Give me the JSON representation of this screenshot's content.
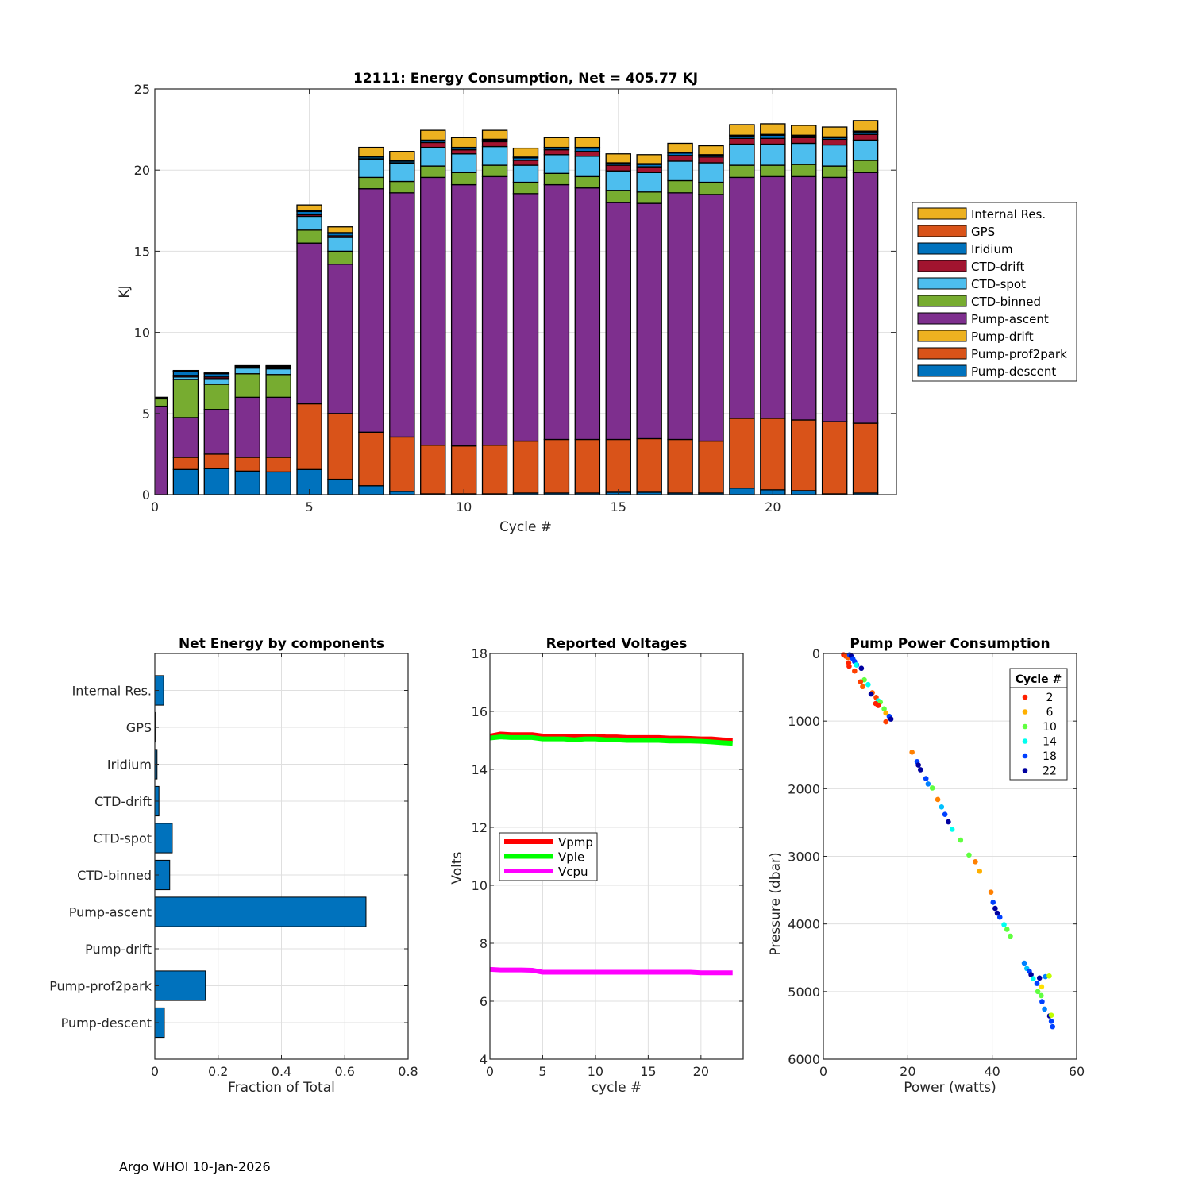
{
  "footer": "Argo WHOI 10-Jan-2026",
  "chart_data": [
    {
      "type": "bar",
      "stacked": true,
      "title": "12111: Energy Consumption,  Net = 405.77 KJ",
      "xlabel": "Cycle #",
      "ylabel": "KJ",
      "xlim": [
        0,
        24
      ],
      "ylim": [
        0,
        25
      ],
      "xticks": [
        0,
        5,
        10,
        15,
        20
      ],
      "yticks": [
        0,
        5,
        10,
        15,
        20,
        25
      ],
      "grid": true,
      "legend_position": "outside-right",
      "legend_order": [
        "Internal Res.",
        "GPS",
        "Iridium",
        "CTD-drift",
        "CTD-spot",
        "CTD-binned",
        "Pump-ascent",
        "Pump-drift",
        "Pump-prof2park",
        "Pump-descent"
      ],
      "x": [
        0,
        1,
        2,
        3,
        4,
        5,
        6,
        7,
        8,
        9,
        10,
        11,
        12,
        13,
        14,
        15,
        16,
        17,
        18,
        19,
        20,
        21,
        22,
        23
      ],
      "series": [
        {
          "name": "Pump-descent",
          "color": "#0072BD",
          "values": [
            0,
            1.55,
            1.6,
            1.45,
            1.4,
            1.55,
            0.95,
            0.55,
            0.2,
            0.05,
            0.05,
            0.05,
            0.1,
            0.1,
            0.1,
            0.15,
            0.15,
            0.1,
            0.1,
            0.4,
            0.3,
            0.25,
            0.05,
            0.1
          ]
        },
        {
          "name": "Pump-prof2park",
          "color": "#D95319",
          "values": [
            0,
            0.75,
            0.9,
            0.85,
            0.9,
            4.05,
            4.05,
            3.3,
            3.35,
            3.0,
            2.95,
            3.0,
            3.2,
            3.3,
            3.3,
            3.25,
            3.3,
            3.3,
            3.2,
            4.3,
            4.4,
            4.35,
            4.45,
            4.3
          ]
        },
        {
          "name": "Pump-drift",
          "color": "#EDB120",
          "values": [
            0,
            0,
            0,
            0,
            0,
            0,
            0,
            0,
            0,
            0,
            0,
            0,
            0,
            0,
            0,
            0,
            0,
            0,
            0,
            0,
            0,
            0,
            0,
            0
          ]
        },
        {
          "name": "Pump-ascent",
          "color": "#7E2F8E",
          "values": [
            5.45,
            2.45,
            2.75,
            3.7,
            3.7,
            9.9,
            9.2,
            15.0,
            15.05,
            16.5,
            16.1,
            16.55,
            15.25,
            15.7,
            15.5,
            14.6,
            14.5,
            15.2,
            15.2,
            14.85,
            14.9,
            15.0,
            15.05,
            15.45
          ]
        },
        {
          "name": "CTD-binned",
          "color": "#77AC30",
          "values": [
            0.45,
            2.35,
            1.55,
            1.45,
            1.4,
            0.8,
            0.8,
            0.7,
            0.7,
            0.7,
            0.75,
            0.7,
            0.7,
            0.7,
            0.7,
            0.75,
            0.7,
            0.75,
            0.75,
            0.75,
            0.7,
            0.75,
            0.7,
            0.75
          ]
        },
        {
          "name": "CTD-spot",
          "color": "#4DBEEE",
          "values": [
            0,
            0.15,
            0.35,
            0.35,
            0.35,
            0.85,
            0.85,
            1.1,
            1.1,
            1.15,
            1.15,
            1.15,
            1.05,
            1.15,
            1.25,
            1.2,
            1.2,
            1.2,
            1.2,
            1.3,
            1.3,
            1.3,
            1.3,
            1.25
          ]
        },
        {
          "name": "CTD-drift",
          "color": "#A2142F",
          "values": [
            0,
            0.1,
            0.1,
            0.05,
            0.1,
            0.1,
            0.1,
            0.05,
            0.05,
            0.3,
            0.25,
            0.3,
            0.3,
            0.3,
            0.3,
            0.35,
            0.35,
            0.35,
            0.35,
            0.35,
            0.35,
            0.35,
            0.35,
            0.35
          ]
        },
        {
          "name": "Iridium",
          "color": "#0072BD",
          "values": [
            0.05,
            0.25,
            0.2,
            0.05,
            0.05,
            0.2,
            0.15,
            0.1,
            0.1,
            0.1,
            0.1,
            0.1,
            0.15,
            0.1,
            0.2,
            0.1,
            0.15,
            0.15,
            0.1,
            0.15,
            0.2,
            0.1,
            0.1,
            0.15
          ]
        },
        {
          "name": "GPS",
          "color": "#D95319",
          "values": [
            0,
            0.02,
            0.02,
            0.02,
            0.02,
            0.05,
            0.05,
            0.05,
            0.05,
            0.05,
            0.05,
            0.05,
            0.05,
            0.05,
            0.05,
            0.05,
            0.05,
            0.05,
            0.05,
            0.05,
            0.05,
            0.05,
            0.05,
            0.05
          ]
        },
        {
          "name": "Internal Res.",
          "color": "#EDB120",
          "values": [
            0.05,
            0.03,
            0.03,
            0.03,
            0.03,
            0.35,
            0.35,
            0.55,
            0.55,
            0.6,
            0.6,
            0.55,
            0.55,
            0.6,
            0.6,
            0.55,
            0.55,
            0.55,
            0.55,
            0.65,
            0.65,
            0.6,
            0.6,
            0.65
          ]
        }
      ]
    },
    {
      "type": "bar",
      "orientation": "horizontal",
      "title": "Net Energy by components",
      "xlabel": "Fraction of Total",
      "ylabel": "",
      "xlim": [
        0,
        0.8
      ],
      "xticks": [
        "0",
        "0.2",
        "0.4",
        "0.6",
        "0.8"
      ],
      "grid": true,
      "color": "#0072BD",
      "categories": [
        "Internal Res.",
        "GPS",
        "Iridium",
        "CTD-drift",
        "CTD-spot",
        "CTD-binned",
        "Pump-ascent",
        "Pump-drift",
        "Pump-prof2park",
        "Pump-descent"
      ],
      "values": [
        0.028,
        0.002,
        0.007,
        0.013,
        0.055,
        0.047,
        0.667,
        0,
        0.16,
        0.03
      ]
    },
    {
      "type": "line",
      "title": "Reported Voltages",
      "xlabel": "cycle #",
      "ylabel": "Volts",
      "xlim": [
        0,
        24
      ],
      "ylim": [
        4,
        18
      ],
      "xticks": [
        0,
        5,
        10,
        15,
        20
      ],
      "yticks": [
        4,
        6,
        8,
        10,
        12,
        14,
        16,
        18
      ],
      "grid": true,
      "legend_position": "lower-left",
      "x": [
        0,
        1,
        2,
        3,
        4,
        5,
        6,
        7,
        8,
        9,
        10,
        11,
        12,
        13,
        14,
        15,
        16,
        17,
        18,
        19,
        20,
        21,
        22,
        23
      ],
      "series": [
        {
          "name": "Vpmp",
          "color": "#FF0000",
          "values": [
            15.15,
            15.22,
            15.2,
            15.2,
            15.2,
            15.15,
            15.15,
            15.15,
            15.15,
            15.15,
            15.15,
            15.12,
            15.12,
            15.1,
            15.1,
            15.1,
            15.1,
            15.08,
            15.08,
            15.07,
            15.05,
            15.05,
            15.02,
            15.0
          ]
        },
        {
          "name": "Vple",
          "color": "#00FF00",
          "values": [
            15.08,
            15.12,
            15.1,
            15.1,
            15.1,
            15.05,
            15.05,
            15.05,
            15.02,
            15.05,
            15.05,
            15.02,
            15.02,
            15.0,
            15.0,
            15.0,
            15.0,
            14.98,
            14.98,
            14.98,
            14.97,
            14.95,
            14.92,
            14.9
          ]
        },
        {
          "name": "Vcpu",
          "color": "#FF00FF",
          "values": [
            7.1,
            7.08,
            7.08,
            7.08,
            7.07,
            7.0,
            7.0,
            7.0,
            7.0,
            7.0,
            7.0,
            7.0,
            7.0,
            7.0,
            7.0,
            7.0,
            7.0,
            7.0,
            7.0,
            7.0,
            6.98,
            6.98,
            6.98,
            6.98
          ]
        }
      ]
    },
    {
      "type": "scatter",
      "title": "Pump Power Consumption",
      "xlabel": "Power (watts)",
      "ylabel": "Pressure (dbar)",
      "xlim": [
        0,
        60
      ],
      "ylim": [
        0,
        6000
      ],
      "y_reversed": true,
      "xticks": [
        0,
        20,
        40,
        60
      ],
      "yticks": [
        0,
        1000,
        2000,
        3000,
        4000,
        5000,
        6000
      ],
      "grid": true,
      "legend_title": "Cycle #",
      "legend_position": "top-right",
      "legend": [
        {
          "label": "2",
          "color": "#FF2000"
        },
        {
          "label": "6",
          "color": "#FFB000"
        },
        {
          "label": "10",
          "color": "#60FF40"
        },
        {
          "label": "14",
          "color": "#00FFF0"
        },
        {
          "label": "18",
          "color": "#0040FF"
        },
        {
          "label": "22",
          "color": "#00009F"
        }
      ],
      "points": [
        {
          "x": 4.8,
          "y": 20,
          "c": "#FF2000"
        },
        {
          "x": 5.3,
          "y": 40,
          "c": "#FF4000"
        },
        {
          "x": 5.8,
          "y": 60,
          "c": "#FF6000"
        },
        {
          "x": 6.2,
          "y": 20,
          "c": "#0040FF"
        },
        {
          "x": 6.6,
          "y": 40,
          "c": "#00009F"
        },
        {
          "x": 7.0,
          "y": 80,
          "c": "#0040FF"
        },
        {
          "x": 7.4,
          "y": 120,
          "c": "#0040FF"
        },
        {
          "x": 7.9,
          "y": 170,
          "c": "#0040FF"
        },
        {
          "x": 6.0,
          "y": 140,
          "c": "#FF2000"
        },
        {
          "x": 6.1,
          "y": 190,
          "c": "#FF2000"
        },
        {
          "x": 7.8,
          "y": 170,
          "c": "#00FFF0"
        },
        {
          "x": 9.0,
          "y": 220,
          "c": "#00009F"
        },
        {
          "x": 7.4,
          "y": 260,
          "c": "#FF4000"
        },
        {
          "x": 9.7,
          "y": 390,
          "c": "#60FF40"
        },
        {
          "x": 8.8,
          "y": 420,
          "c": "#FF4000"
        },
        {
          "x": 9.3,
          "y": 490,
          "c": "#FF6000"
        },
        {
          "x": 10.6,
          "y": 460,
          "c": "#00FFF0"
        },
        {
          "x": 11.6,
          "y": 580,
          "c": "#FF6000"
        },
        {
          "x": 11.3,
          "y": 600,
          "c": "#00009F"
        },
        {
          "x": 12.5,
          "y": 650,
          "c": "#FF4000"
        },
        {
          "x": 13.0,
          "y": 700,
          "c": "#00FFF0"
        },
        {
          "x": 13.5,
          "y": 720,
          "c": "#60FF40"
        },
        {
          "x": 12.4,
          "y": 740,
          "c": "#FF2000"
        },
        {
          "x": 13.0,
          "y": 770,
          "c": "#FF2000"
        },
        {
          "x": 14.4,
          "y": 820,
          "c": "#60FF40"
        },
        {
          "x": 14.8,
          "y": 880,
          "c": "#FFB000"
        },
        {
          "x": 15.6,
          "y": 930,
          "c": "#0040FF"
        },
        {
          "x": 16.0,
          "y": 970,
          "c": "#00009F"
        },
        {
          "x": 14.8,
          "y": 1010,
          "c": "#FF4000"
        },
        {
          "x": 21.0,
          "y": 1460,
          "c": "#FF8000"
        },
        {
          "x": 22.2,
          "y": 1600,
          "c": "#0040FF"
        },
        {
          "x": 22.5,
          "y": 1650,
          "c": "#00009F"
        },
        {
          "x": 23.0,
          "y": 1720,
          "c": "#00009F"
        },
        {
          "x": 24.3,
          "y": 1850,
          "c": "#0040FF"
        },
        {
          "x": 25.8,
          "y": 1990,
          "c": "#60FF40"
        },
        {
          "x": 24.8,
          "y": 1930,
          "c": "#0080FF"
        },
        {
          "x": 27.1,
          "y": 2160,
          "c": "#FF8000"
        },
        {
          "x": 28.0,
          "y": 2270,
          "c": "#00C0FF"
        },
        {
          "x": 28.8,
          "y": 2380,
          "c": "#0040FF"
        },
        {
          "x": 29.6,
          "y": 2490,
          "c": "#00009F"
        },
        {
          "x": 30.5,
          "y": 2600,
          "c": "#00FFF0"
        },
        {
          "x": 32.5,
          "y": 2760,
          "c": "#60FF40"
        },
        {
          "x": 34.5,
          "y": 2980,
          "c": "#60FF40"
        },
        {
          "x": 36.0,
          "y": 3080,
          "c": "#FF8000"
        },
        {
          "x": 37.0,
          "y": 3220,
          "c": "#FFB000"
        },
        {
          "x": 39.7,
          "y": 3530,
          "c": "#FF8000"
        },
        {
          "x": 40.2,
          "y": 3680,
          "c": "#0040FF"
        },
        {
          "x": 40.7,
          "y": 3770,
          "c": "#00009F"
        },
        {
          "x": 41.2,
          "y": 3840,
          "c": "#00009F"
        },
        {
          "x": 41.8,
          "y": 3900,
          "c": "#0040FF"
        },
        {
          "x": 42.8,
          "y": 4010,
          "c": "#00FFF0"
        },
        {
          "x": 43.5,
          "y": 4080,
          "c": "#60FF40"
        },
        {
          "x": 44.3,
          "y": 4180,
          "c": "#60FF40"
        },
        {
          "x": 47.6,
          "y": 4580,
          "c": "#0080FF"
        },
        {
          "x": 48.2,
          "y": 4660,
          "c": "#00C0FF"
        },
        {
          "x": 48.8,
          "y": 4700,
          "c": "#0040FF"
        },
        {
          "x": 49.2,
          "y": 4750,
          "c": "#00009F"
        },
        {
          "x": 49.7,
          "y": 4810,
          "c": "#00FFF0"
        },
        {
          "x": 50.6,
          "y": 4880,
          "c": "#0040FF"
        },
        {
          "x": 51.2,
          "y": 4800,
          "c": "#00009F"
        },
        {
          "x": 52.6,
          "y": 4780,
          "c": "#0080FF"
        },
        {
          "x": 53.5,
          "y": 4770,
          "c": "#C0FF00"
        },
        {
          "x": 51.7,
          "y": 4930,
          "c": "#FFE000"
        },
        {
          "x": 50.8,
          "y": 5000,
          "c": "#60FF40"
        },
        {
          "x": 51.6,
          "y": 5060,
          "c": "#60FF40"
        },
        {
          "x": 51.8,
          "y": 5150,
          "c": "#0040FF"
        },
        {
          "x": 52.4,
          "y": 5260,
          "c": "#0080FF"
        },
        {
          "x": 53.6,
          "y": 5360,
          "c": "#00009F"
        },
        {
          "x": 54.0,
          "y": 5440,
          "c": "#0040FF"
        },
        {
          "x": 54.3,
          "y": 5520,
          "c": "#0040FF"
        },
        {
          "x": 54.0,
          "y": 5350,
          "c": "#C0FF00"
        }
      ]
    }
  ]
}
